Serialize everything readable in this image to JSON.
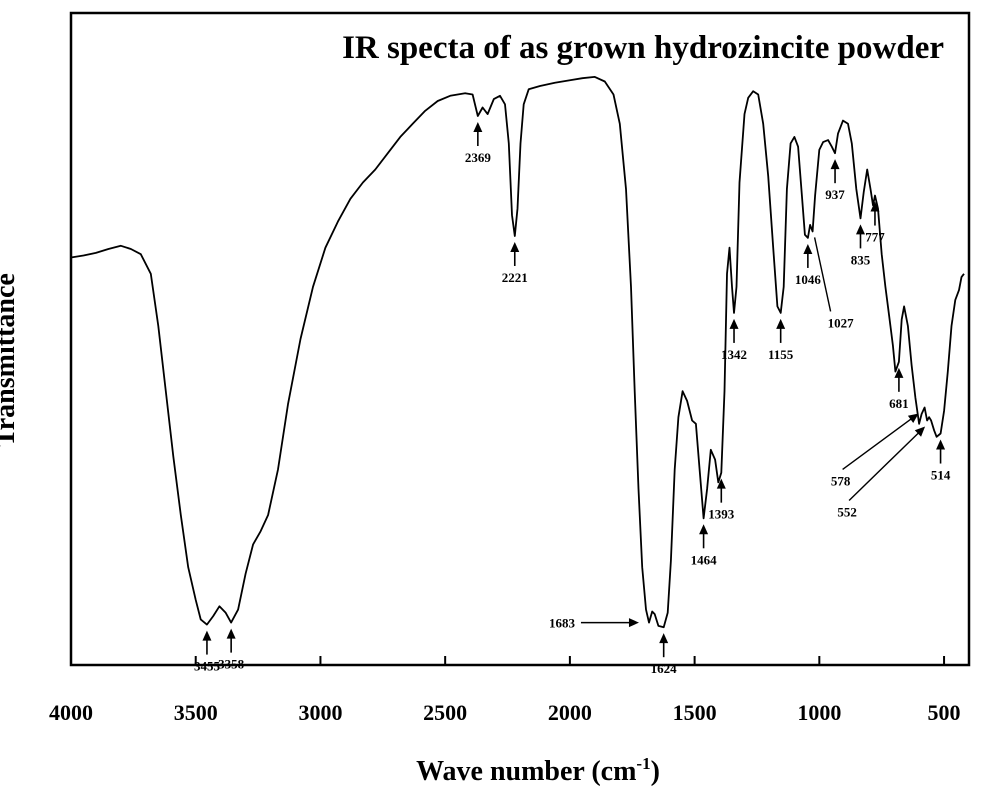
{
  "chart_data": {
    "type": "line",
    "title": "IR specta of as grown hydrozincite powder",
    "xlabel": "Wave number (cm",
    "xlabel_sup": "-1",
    "xlabel_close": ")",
    "ylabel": "Transmittance",
    "xlim": [
      4000,
      400
    ],
    "x_reversed": true,
    "ylim": [
      0,
      100
    ],
    "y_ticks_shown": false,
    "x_ticks": [
      4000,
      3500,
      3000,
      2500,
      2000,
      1500,
      1000,
      500
    ],
    "x_tick_labels": [
      "4000",
      "3500",
      "3000",
      "2500",
      "2000",
      "1500",
      "1000",
      "500"
    ],
    "grid": false,
    "series": [
      {
        "values_note": "",
        "points": [
          [
            4000,
            62.5
          ],
          [
            3950,
            62.8
          ],
          [
            3900,
            63.2
          ],
          [
            3850,
            63.8
          ],
          [
            3800,
            64.3
          ],
          [
            3760,
            63.8
          ],
          [
            3720,
            63.0
          ],
          [
            3680,
            60.0
          ],
          [
            3650,
            52.0
          ],
          [
            3620,
            42.0
          ],
          [
            3590,
            32.0
          ],
          [
            3560,
            23.0
          ],
          [
            3530,
            15.0
          ],
          [
            3500,
            10.0
          ],
          [
            3480,
            7.0
          ],
          [
            3455,
            6.2
          ],
          [
            3430,
            7.5
          ],
          [
            3405,
            9.0
          ],
          [
            3380,
            8.0
          ],
          [
            3358,
            6.5
          ],
          [
            3330,
            8.5
          ],
          [
            3300,
            14.0
          ],
          [
            3270,
            18.5
          ],
          [
            3240,
            20.5
          ],
          [
            3210,
            23.0
          ],
          [
            3170,
            30.0
          ],
          [
            3130,
            40.0
          ],
          [
            3080,
            50.0
          ],
          [
            3030,
            58.0
          ],
          [
            2980,
            64.0
          ],
          [
            2930,
            68.0
          ],
          [
            2880,
            71.5
          ],
          [
            2830,
            74.0
          ],
          [
            2780,
            76.0
          ],
          [
            2730,
            78.5
          ],
          [
            2680,
            81.0
          ],
          [
            2630,
            83.0
          ],
          [
            2580,
            85.0
          ],
          [
            2530,
            86.5
          ],
          [
            2480,
            87.3
          ],
          [
            2420,
            87.7
          ],
          [
            2390,
            87.5
          ],
          [
            2369,
            84.2
          ],
          [
            2350,
            85.5
          ],
          [
            2330,
            84.5
          ],
          [
            2305,
            86.8
          ],
          [
            2280,
            87.3
          ],
          [
            2260,
            86.0
          ],
          [
            2245,
            80.0
          ],
          [
            2232,
            69.0
          ],
          [
            2221,
            65.8
          ],
          [
            2210,
            70.0
          ],
          [
            2198,
            80.0
          ],
          [
            2185,
            86.0
          ],
          [
            2165,
            88.3
          ],
          [
            2120,
            88.8
          ],
          [
            2060,
            89.3
          ],
          [
            2000,
            89.7
          ],
          [
            1950,
            90.0
          ],
          [
            1900,
            90.2
          ],
          [
            1860,
            89.5
          ],
          [
            1825,
            87.5
          ],
          [
            1800,
            83.0
          ],
          [
            1775,
            73.0
          ],
          [
            1755,
            58.0
          ],
          [
            1740,
            42.0
          ],
          [
            1725,
            27.0
          ],
          [
            1710,
            15.0
          ],
          [
            1695,
            8.5
          ],
          [
            1683,
            6.5
          ],
          [
            1670,
            8.2
          ],
          [
            1660,
            7.8
          ],
          [
            1645,
            6.0
          ],
          [
            1624,
            5.8
          ],
          [
            1608,
            8.0
          ],
          [
            1595,
            16.0
          ],
          [
            1580,
            30.0
          ],
          [
            1565,
            38.0
          ],
          [
            1548,
            42.0
          ],
          [
            1530,
            40.5
          ],
          [
            1510,
            37.5
          ],
          [
            1495,
            37.0
          ],
          [
            1480,
            30.0
          ],
          [
            1464,
            22.5
          ],
          [
            1450,
            27.0
          ],
          [
            1435,
            33.0
          ],
          [
            1418,
            31.5
          ],
          [
            1405,
            28.0
          ],
          [
            1393,
            29.5
          ],
          [
            1380,
            42.0
          ],
          [
            1370,
            60.0
          ],
          [
            1360,
            64.0
          ],
          [
            1350,
            58.0
          ],
          [
            1342,
            54.0
          ],
          [
            1332,
            58.0
          ],
          [
            1320,
            74.0
          ],
          [
            1300,
            84.5
          ],
          [
            1285,
            87.0
          ],
          [
            1265,
            88.0
          ],
          [
            1245,
            87.5
          ],
          [
            1225,
            83.0
          ],
          [
            1205,
            75.0
          ],
          [
            1185,
            64.0
          ],
          [
            1168,
            55.0
          ],
          [
            1155,
            54.0
          ],
          [
            1143,
            58.0
          ],
          [
            1130,
            73.0
          ],
          [
            1115,
            80.0
          ],
          [
            1100,
            81.0
          ],
          [
            1085,
            79.5
          ],
          [
            1070,
            72.0
          ],
          [
            1058,
            66.0
          ],
          [
            1046,
            65.5
          ],
          [
            1037,
            67.5
          ],
          [
            1027,
            66.5
          ],
          [
            1017,
            72.0
          ],
          [
            1000,
            79.0
          ],
          [
            985,
            80.2
          ],
          [
            965,
            80.5
          ],
          [
            950,
            79.5
          ],
          [
            937,
            78.5
          ],
          [
            925,
            81.5
          ],
          [
            905,
            83.5
          ],
          [
            885,
            83.0
          ],
          [
            870,
            80.0
          ],
          [
            852,
            73.0
          ],
          [
            835,
            68.5
          ],
          [
            822,
            72.5
          ],
          [
            808,
            76.0
          ],
          [
            795,
            73.0
          ],
          [
            785,
            70.5
          ],
          [
            777,
            72.0
          ],
          [
            765,
            70.0
          ],
          [
            750,
            63.0
          ],
          [
            735,
            58.0
          ],
          [
            720,
            53.5
          ],
          [
            705,
            49.0
          ],
          [
            695,
            45.0
          ],
          [
            681,
            46.5
          ],
          [
            670,
            53.0
          ],
          [
            660,
            55.0
          ],
          [
            645,
            52.0
          ],
          [
            630,
            46.0
          ],
          [
            615,
            41.0
          ],
          [
            600,
            37.0
          ],
          [
            590,
            38.5
          ],
          [
            578,
            39.5
          ],
          [
            568,
            37.5
          ],
          [
            560,
            38.0
          ],
          [
            552,
            37.5
          ],
          [
            540,
            36.0
          ],
          [
            530,
            35.0
          ],
          [
            514,
            35.5
          ],
          [
            500,
            39.0
          ],
          [
            485,
            45.0
          ],
          [
            470,
            52.0
          ],
          [
            455,
            56.0
          ],
          [
            440,
            57.5
          ],
          [
            430,
            59.5
          ],
          [
            420,
            60.0
          ]
        ]
      }
    ],
    "annotations": [
      {
        "label": "3455",
        "x": 3455,
        "kind": "up",
        "label_pos": "below"
      },
      {
        "label": "3358",
        "x": 3358,
        "kind": "up",
        "label_pos": "below"
      },
      {
        "label": "2369",
        "x": 2369,
        "kind": "up",
        "label_pos": "below"
      },
      {
        "label": "2221",
        "x": 2221,
        "kind": "up",
        "label_pos": "below"
      },
      {
        "label": "1683",
        "x": 1683,
        "kind": "right",
        "label_pos": "left"
      },
      {
        "label": "1624",
        "x": 1624,
        "kind": "up",
        "label_pos": "below"
      },
      {
        "label": "1464",
        "x": 1464,
        "kind": "up",
        "label_pos": "below"
      },
      {
        "label": "1393",
        "x": 1393,
        "kind": "up",
        "label_pos": "below"
      },
      {
        "label": "1342",
        "x": 1342,
        "kind": "up",
        "label_pos": "below"
      },
      {
        "label": "1155",
        "x": 1155,
        "kind": "up",
        "label_pos": "below"
      },
      {
        "label": "1046",
        "x": 1046,
        "kind": "up",
        "label_pos": "below"
      },
      {
        "label": "1027",
        "x": 1027,
        "kind": "leader",
        "label_pos": "below"
      },
      {
        "label": "937",
        "x": 937,
        "kind": "up",
        "label_pos": "below"
      },
      {
        "label": "835",
        "x": 835,
        "kind": "up",
        "label_pos": "below"
      },
      {
        "label": "777",
        "x": 777,
        "kind": "up",
        "label_pos": "below"
      },
      {
        "label": "681",
        "x": 681,
        "kind": "up",
        "label_pos": "below"
      },
      {
        "label": "578",
        "x": 578,
        "kind": "diagonal",
        "label_pos": "below-left"
      },
      {
        "label": "552",
        "x": 552,
        "kind": "diagonal",
        "label_pos": "below-left"
      },
      {
        "label": "514",
        "x": 514,
        "kind": "up",
        "label_pos": "below"
      }
    ]
  }
}
